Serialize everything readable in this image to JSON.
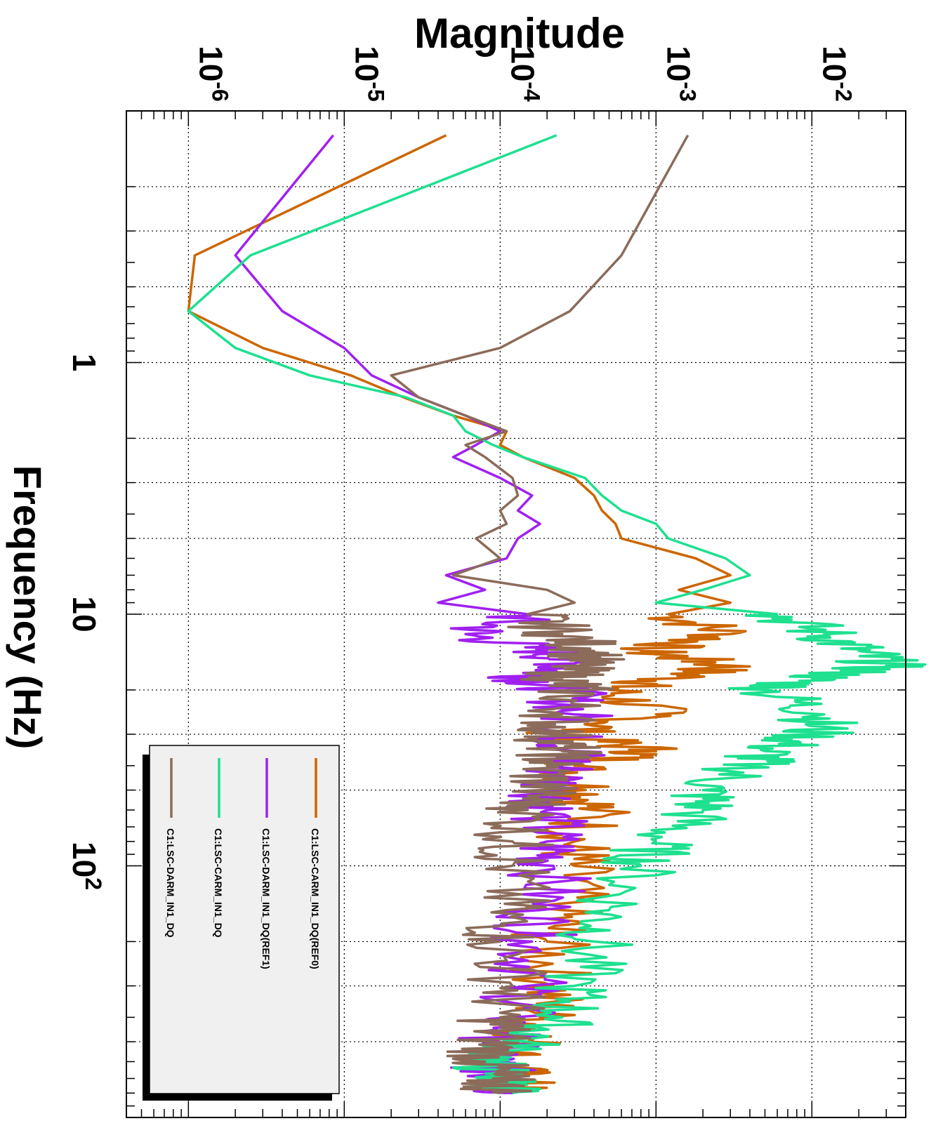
{
  "chart_data": {
    "type": "line",
    "orientation": "rotated 90 degrees clockwise",
    "ylabel": "Magnitude",
    "xlabel": "Frequency (Hz)",
    "x_scale": "log",
    "y_scale": "log",
    "xlim": [
      0.1,
      1000
    ],
    "ylim": [
      4e-07,
      0.04
    ],
    "x_tick_labels": [
      {
        "value": 1,
        "base": "1",
        "exp": ""
      },
      {
        "value": 10,
        "base": "10",
        "exp": ""
      },
      {
        "value": 100,
        "base": "10",
        "exp": "2"
      }
    ],
    "y_tick_labels": [
      {
        "value": 1e-06,
        "base": "10",
        "exp": "-6"
      },
      {
        "value": 1e-05,
        "base": "10",
        "exp": "-5"
      },
      {
        "value": 0.0001,
        "base": "10",
        "exp": "-4"
      },
      {
        "value": 0.001,
        "base": "10",
        "exp": "-3"
      },
      {
        "value": 0.01,
        "base": "10",
        "exp": "-2"
      }
    ],
    "grid": true,
    "legend_position": "bottom-left",
    "series": [
      {
        "name": "C1:LSC-CARM_IN1_DQ(REF0)",
        "color": "#cc6600",
        "x": [
          0.125,
          0.375,
          0.625,
          0.875,
          1.125,
          1.375,
          1.625,
          1.875,
          2.125,
          2.375,
          2.875,
          3.375,
          3.875,
          4.375,
          5.0,
          6.0,
          7.0,
          8.0,
          9.0,
          10.0,
          12.0,
          14.0,
          16.0,
          18.0,
          20.0,
          25.0,
          30.0,
          35.0,
          40.0,
          50.0,
          60.0,
          80.0,
          100.0,
          150.0,
          200.0,
          300.0,
          400.0,
          500.0,
          600.0,
          700.0,
          800.0
        ],
        "y": [
          4.5e-05,
          1.1e-06,
          1e-06,
          3e-06,
          1.1e-05,
          2.4e-05,
          5e-05,
          0.00011,
          0.0001,
          0.00014,
          0.0003,
          0.0004,
          0.00045,
          0.00055,
          0.0006,
          0.0018,
          0.003,
          0.0014,
          0.003,
          0.0012,
          0.003,
          0.0008,
          0.003,
          0.0013,
          0.0005,
          0.001,
          0.00025,
          0.001,
          0.0003,
          0.00035,
          0.0004,
          0.0003,
          0.0003,
          0.00025,
          0.0002,
          0.00022,
          0.00018,
          0.00015,
          0.0001,
          0.00013,
          0.00011
        ]
      },
      {
        "name": "C1:LSC-DARM_IN1_DQ(REF1)",
        "color": "#a020f0",
        "x": [
          0.125,
          0.375,
          0.625,
          0.875,
          1.125,
          1.375,
          1.625,
          1.875,
          2.125,
          2.375,
          2.875,
          3.375,
          3.875,
          4.375,
          5.0,
          6.0,
          7.0,
          8.0,
          9.0,
          10.0,
          12.0,
          14.0,
          16.0,
          18.0,
          20.0,
          25.0,
          30.0,
          35.0,
          40.0,
          50.0,
          60.0,
          80.0,
          100.0,
          150.0,
          200.0,
          300.0,
          400.0,
          500.0,
          600.0,
          700.0,
          800.0
        ],
        "y": [
          8.5e-06,
          2e-06,
          4e-06,
          1e-05,
          1.5e-05,
          3e-05,
          6e-05,
          0.0001,
          7e-05,
          5e-05,
          0.0001,
          0.00016,
          0.00013,
          0.00018,
          0.00013,
          0.00011,
          4.5e-05,
          8e-05,
          4e-05,
          0.00015,
          6e-05,
          0.0002,
          0.0003,
          0.00015,
          0.00025,
          0.0003,
          0.00025,
          0.0003,
          0.00025,
          0.00022,
          0.0002,
          0.0002,
          0.00022,
          0.00018,
          0.00016,
          0.00015,
          0.00012,
          0.0001,
          8e-05,
          0.0001,
          0.00012
        ]
      },
      {
        "name": "C1:LSC-CARM_IN1_DQ",
        "color": "#1ee08f",
        "x": [
          0.125,
          0.375,
          0.625,
          0.875,
          1.125,
          1.375,
          1.625,
          1.875,
          2.125,
          2.375,
          2.875,
          3.375,
          3.875,
          4.375,
          5.0,
          6.0,
          7.0,
          8.0,
          9.0,
          10.0,
          12.0,
          14.0,
          16.0,
          18.0,
          20.0,
          25.0,
          30.0,
          35.0,
          40.0,
          50.0,
          60.0,
          80.0,
          100.0,
          150.0,
          200.0,
          300.0,
          400.0,
          500.0,
          600.0,
          700.0,
          800.0
        ],
        "y": [
          0.00023,
          2.5e-06,
          1e-06,
          2e-06,
          6e-06,
          2.5e-05,
          5e-05,
          6e-05,
          9e-05,
          0.00014,
          0.00035,
          0.00045,
          0.0006,
          0.001,
          0.0012,
          0.0028,
          0.004,
          0.002,
          0.001,
          0.006,
          0.012,
          0.02,
          0.03,
          0.01,
          0.005,
          0.012,
          0.01,
          0.005,
          0.004,
          0.002,
          0.002,
          0.001,
          0.0008,
          0.0005,
          0.0004,
          0.0003,
          0.00025,
          0.00015,
          8e-05,
          0.0001,
          0.00012
        ]
      },
      {
        "name": "C1:LSC-DARM_IN1_DQ",
        "color": "#8b6b5a",
        "x": [
          0.125,
          0.375,
          0.625,
          0.875,
          1.125,
          1.375,
          1.625,
          1.875,
          2.125,
          2.375,
          2.875,
          3.375,
          3.875,
          4.375,
          5.0,
          6.0,
          7.0,
          8.0,
          9.0,
          10.0,
          12.0,
          14.0,
          16.0,
          18.0,
          20.0,
          25.0,
          30.0,
          35.0,
          40.0,
          50.0,
          60.0,
          80.0,
          100.0,
          150.0,
          200.0,
          300.0,
          400.0,
          500.0,
          600.0,
          700.0,
          800.0
        ],
        "y": [
          0.0016,
          0.0006,
          0.00028,
          0.0001,
          2e-05,
          3e-05,
          6e-05,
          0.00011,
          6e-05,
          8e-05,
          0.00012,
          0.00013,
          0.0001,
          0.00011,
          7e-05,
          0.0001,
          5e-05,
          0.0002,
          0.0003,
          0.00015,
          0.00025,
          0.0004,
          0.0003,
          0.00025,
          0.0003,
          0.00025,
          0.00022,
          0.00025,
          0.0002,
          0.00018,
          0.00015,
          0.00012,
          0.00012,
          0.00011,
          0.0001,
          0.00012,
          0.0001,
          9e-05,
          8e-05,
          9e-05,
          0.0001
        ]
      }
    ]
  }
}
